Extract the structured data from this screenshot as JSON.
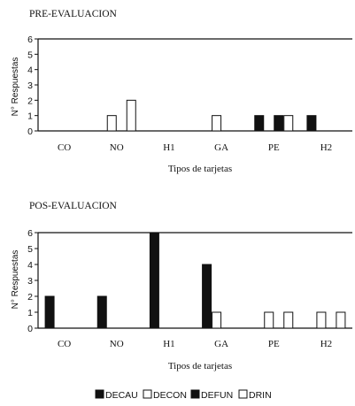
{
  "chart_data": [
    {
      "type": "bar",
      "title": "PRE-EVALUACION",
      "xlabel": "Tipos de tarjetas",
      "ylabel": "N° Respuestas",
      "ylim": [
        0,
        6
      ],
      "yticks": [
        "0",
        "1",
        "2",
        "3",
        "4",
        "5",
        "6"
      ],
      "categories": [
        "CO",
        "NO",
        "H1",
        "GA",
        "PE",
        "H2"
      ],
      "series": [
        {
          "name": "DECAU",
          "values": [
            0,
            0,
            0,
            0,
            1,
            1
          ]
        },
        {
          "name": "DECON",
          "values": [
            0,
            1,
            0,
            1,
            0,
            0
          ]
        },
        {
          "name": "DEFUN",
          "values": [
            0,
            0,
            0,
            0,
            1,
            0
          ]
        },
        {
          "name": "DRIN",
          "values": [
            0,
            2,
            0,
            0,
            1,
            0
          ]
        }
      ]
    },
    {
      "type": "bar",
      "title": "POS-EVALUACION",
      "xlabel": "Tipos de tarjetas",
      "ylabel": "N° Respuestas",
      "ylim": [
        0,
        6
      ],
      "yticks": [
        "0",
        "1",
        "2",
        "3",
        "4",
        "5",
        "6"
      ],
      "categories": [
        "CO",
        "NO",
        "H1",
        "GA",
        "PE",
        "H2"
      ],
      "series": [
        {
          "name": "DECAU",
          "values": [
            2,
            2,
            6,
            4,
            0,
            0
          ]
        },
        {
          "name": "DECON",
          "values": [
            0,
            0,
            0,
            1,
            1,
            1
          ]
        },
        {
          "name": "DEFUN",
          "values": [
            0,
            0,
            0,
            0,
            0,
            0
          ]
        },
        {
          "name": "DRIN",
          "values": [
            0,
            0,
            0,
            0,
            1,
            1
          ]
        }
      ]
    }
  ],
  "legend": [
    {
      "label": "DECAU",
      "fill": "#111111"
    },
    {
      "label": "DECON",
      "fill": "#ffffff"
    },
    {
      "label": "DEFUN",
      "fill": "#111111"
    },
    {
      "label": "DRIN",
      "fill": "#ffffff"
    }
  ],
  "colors": {
    "filled": "#111111",
    "hollow": "#ffffff",
    "ink": "#111111"
  }
}
